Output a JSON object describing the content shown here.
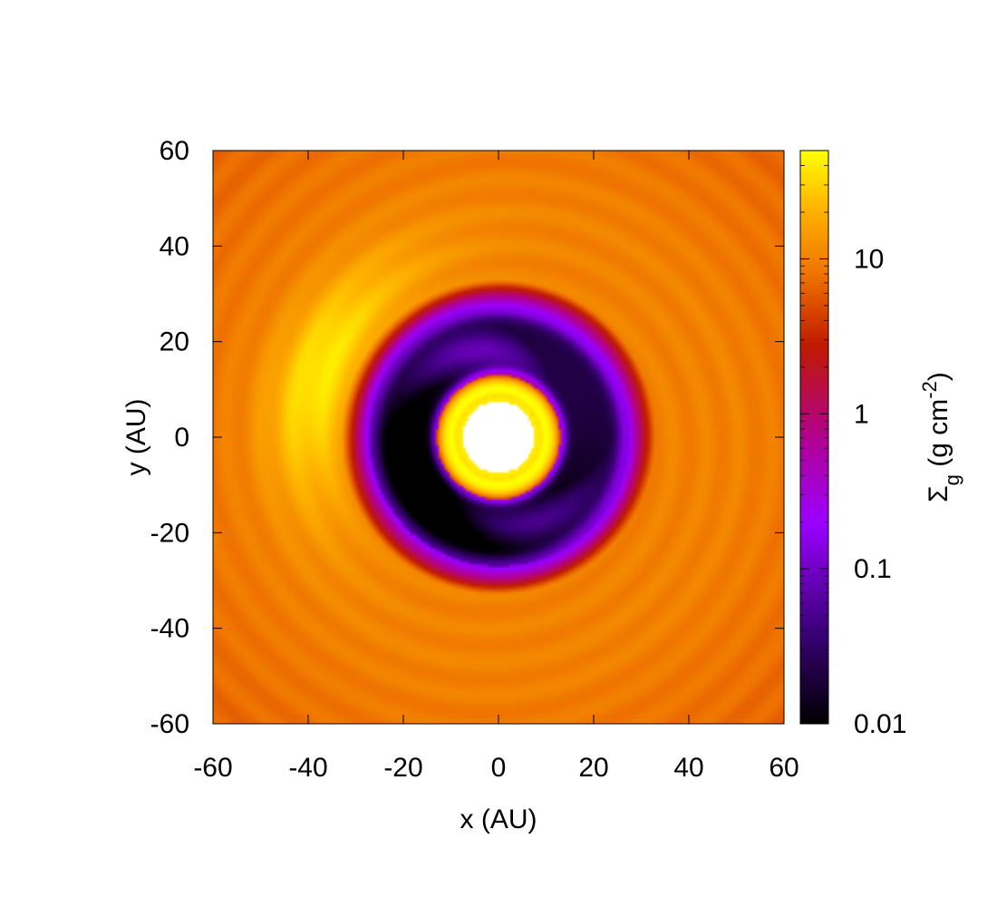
{
  "chart_data": {
    "type": "heatmap",
    "xlabel": "x (AU)",
    "ylabel": "y (AU)",
    "colorbar_label": {
      "main": "Σ",
      "sub": "g",
      "unit_open": " (g cm",
      "sup": "-2",
      "unit_close": ")"
    },
    "xlim": [
      -60,
      60
    ],
    "ylim": [
      -60,
      60
    ],
    "x_ticks": [
      "-60",
      "-40",
      "-20",
      "0",
      "20",
      "40",
      "60"
    ],
    "y_ticks": [
      "60",
      "40",
      "20",
      "0",
      "-20",
      "-40",
      "-60"
    ],
    "colorbar": {
      "scale": "log",
      "range": [
        0.01,
        50
      ],
      "ticks": [
        "10",
        "1",
        "0.1",
        "0.01"
      ],
      "tick_values": [
        10,
        1,
        0.1,
        0.01
      ]
    },
    "field": {
      "description_free": true,
      "inner_hole_radius_AU": 7.5,
      "inner_ring_radius_AU": 10,
      "gap_inner_AU": 13,
      "gap_outer_AU": 27,
      "crescent_peak_angle_deg": 160,
      "background_value": 10,
      "crescent_peak_value": 40,
      "gap_min_value": 0.01
    },
    "colors": {
      "min": "#000000",
      "low": "#9b00ff",
      "mid": "#c00000",
      "high": "#ff9a00",
      "max": "#ffff00"
    }
  }
}
